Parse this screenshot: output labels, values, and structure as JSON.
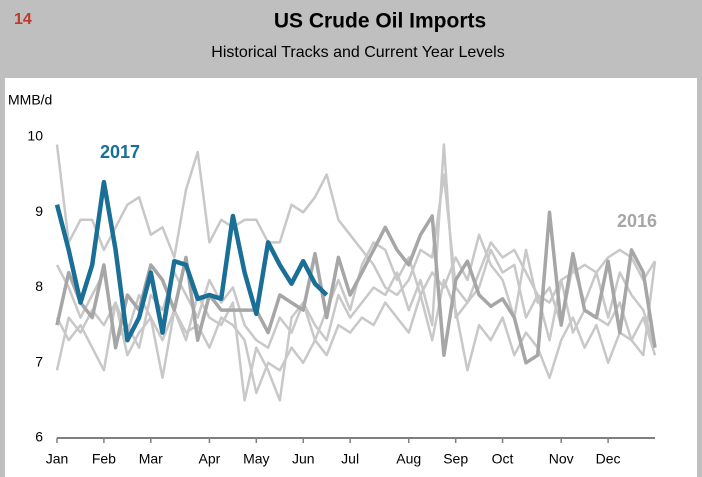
{
  "chart_data": {
    "type": "line",
    "page_number": "14",
    "title": "US Crude Oil Imports",
    "subtitle": "Historical Tracks and Current Year Levels",
    "y_label": "MMB/d",
    "categories": [
      "Jan",
      null,
      null,
      null,
      "Feb",
      null,
      null,
      null,
      "Mar",
      null,
      null,
      null,
      null,
      "Apr",
      null,
      null,
      null,
      "May",
      null,
      null,
      null,
      "Jun",
      null,
      null,
      null,
      "Jul",
      null,
      null,
      null,
      null,
      "Aug",
      null,
      null,
      null,
      "Sep",
      null,
      null,
      null,
      "Oct",
      null,
      null,
      null,
      null,
      "Nov",
      null,
      null,
      null,
      "Dec",
      null,
      null,
      null,
      null
    ],
    "ylim": [
      6,
      10
    ],
    "yticks": [
      6,
      7,
      8,
      9,
      10
    ],
    "grid": false,
    "series": [
      {
        "color": "#c8c8c8",
        "values": [
          9.9,
          8.6,
          8.9,
          8.9,
          8.5,
          8.8,
          9.1,
          9.2,
          8.7,
          8.8,
          8.4,
          9.3,
          9.8,
          8.6,
          8.9,
          8.8,
          8.9,
          8.9,
          8.6,
          8.6,
          9.1,
          9.0,
          9.2,
          9.5,
          8.9,
          8.7,
          8.5,
          8.3,
          8.0,
          7.9,
          8.1,
          8.5,
          8.4,
          9.5,
          8.0,
          7.8,
          8.2,
          8.6,
          8.4,
          8.5,
          8.2,
          7.9,
          7.8,
          8.1,
          8.2,
          8.3,
          8.2,
          8.4,
          8.5,
          8.4,
          8.1,
          8.35
        ]
      },
      {
        "color": "#c8c8c8",
        "values": [
          6.9,
          7.6,
          7.4,
          7.7,
          7.5,
          7.8,
          7.1,
          7.4,
          7.6,
          7.3,
          7.7,
          7.4,
          7.5,
          7.2,
          7.6,
          7.5,
          7.3,
          6.6,
          7.0,
          6.9,
          7.2,
          7.0,
          7.3,
          7.1,
          7.5,
          7.4,
          7.6,
          7.5,
          7.8,
          7.6,
          7.4,
          7.9,
          7.3,
          8.1,
          7.7,
          6.9,
          7.5,
          7.3,
          7.6,
          7.1,
          7.4,
          7.2,
          6.8,
          7.3,
          7.6,
          7.2,
          7.5,
          7.0,
          7.4,
          7.3,
          7.6,
          7.1
        ]
      },
      {
        "color": "#c8c8c8",
        "values": [
          7.6,
          7.3,
          7.5,
          7.2,
          6.9,
          7.8,
          7.4,
          7.9,
          7.6,
          6.8,
          7.7,
          7.3,
          7.9,
          7.6,
          7.5,
          7.8,
          6.5,
          7.2,
          6.9,
          6.5,
          7.6,
          7.8,
          7.5,
          7.3,
          7.9,
          7.6,
          7.8,
          8.0,
          7.9,
          8.2,
          7.7,
          8.1,
          7.5,
          9.9,
          7.6,
          7.8,
          8.0,
          8.5,
          8.2,
          8.3,
          7.6,
          7.9,
          7.3,
          8.1,
          7.4,
          7.7,
          7.6,
          7.5,
          7.8,
          7.3,
          7.1,
          8.35
        ]
      },
      {
        "color": "#c8c8c8",
        "values": [
          8.3,
          8.0,
          7.6,
          7.9,
          8.2,
          7.3,
          7.5,
          7.2,
          7.9,
          7.7,
          8.2,
          7.9,
          7.6,
          8.1,
          7.8,
          8.0,
          7.5,
          7.3,
          7.2,
          7.6,
          7.4,
          7.8,
          7.3,
          7.7,
          8.1,
          7.7,
          8.3,
          8.6,
          8.5,
          8.1,
          8.4,
          7.9,
          8.2,
          8.0,
          8.4,
          8.1,
          8.7,
          8.3,
          8.1,
          7.6,
          8.5,
          7.8,
          8.0,
          7.5,
          8.3,
          7.8,
          8.2,
          7.6,
          8.2,
          7.9,
          7.7,
          7.2
        ]
      },
      {
        "name": "2016",
        "color": "#a6a6a6",
        "values": [
          7.5,
          8.2,
          7.8,
          7.6,
          8.3,
          7.2,
          7.9,
          7.7,
          8.3,
          8.1,
          7.7,
          8.4,
          7.3,
          7.9,
          7.7,
          7.7,
          7.7,
          7.7,
          7.4,
          7.9,
          7.8,
          7.7,
          8.45,
          7.6,
          8.4,
          7.9,
          8.2,
          8.5,
          8.8,
          8.5,
          8.3,
          8.7,
          8.95,
          7.1,
          8.1,
          8.35,
          7.9,
          7.75,
          7.85,
          7.6,
          7.0,
          7.1,
          9.0,
          7.5,
          8.45,
          7.7,
          7.6,
          8.35,
          7.4,
          8.5,
          8.2,
          7.2
        ]
      },
      {
        "name": "2017",
        "color": "#1a6f96",
        "values": [
          9.1,
          8.5,
          7.8,
          8.3,
          9.4,
          8.5,
          7.3,
          7.6,
          8.2,
          7.4,
          8.35,
          8.3,
          7.85,
          7.9,
          7.85,
          8.95,
          8.2,
          7.65,
          8.6,
          8.3,
          8.05,
          8.35,
          8.05,
          7.9,
          null,
          null,
          null,
          null,
          null,
          null,
          null,
          null,
          null,
          null,
          null,
          null,
          null,
          null,
          null,
          null,
          null,
          null,
          null,
          null,
          null,
          null,
          null,
          null,
          null,
          null,
          null,
          null
        ]
      }
    ]
  }
}
